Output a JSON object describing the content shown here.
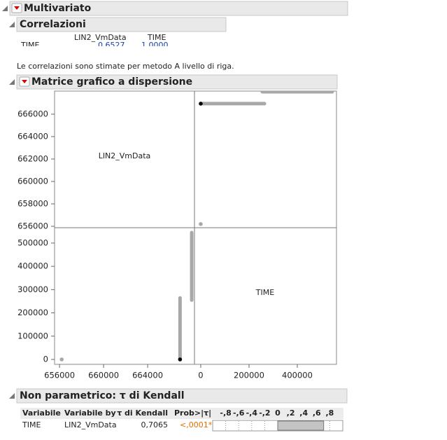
{
  "header": {
    "title": "Multivariato"
  },
  "correlations": {
    "title": "Correlazioni",
    "columns": [
      "LIN2_VmData",
      "TIME"
    ],
    "rows": [
      {
        "label": "TIME",
        "values": [
          "0,6527",
          "1,0000"
        ]
      }
    ],
    "note": "Le correlazioni sono stimate per metodo A livello di riga."
  },
  "scatter_matrix": {
    "title": "Matrice grafico a dispersione",
    "variables": [
      {
        "name": "LIN2_VmData",
        "xlim": [
          655550,
          668250
        ],
        "xticks": [
          656000,
          660000,
          664000
        ],
        "ylim": [
          655875,
          668060
        ],
        "yticks": [
          656000,
          658000,
          660000,
          662000,
          664000,
          666000
        ]
      },
      {
        "name": "TIME",
        "xlim": [
          -26000,
          562300
        ],
        "xticks": [
          0,
          200000,
          400000
        ],
        "ylim": [
          -21100,
          566000
        ],
        "yticks": [
          0,
          100000,
          200000,
          300000,
          400000,
          500000
        ]
      }
    ],
    "bands": [
      {
        "lin2": 666940,
        "time": [
          0,
          264000
        ],
        "color": "#a8a8a8"
      },
      {
        "lin2": 668000,
        "time": [
          255000,
          545000
        ],
        "color": "#a8a8a8"
      }
    ],
    "points": [
      {
        "lin2": 656200,
        "time": 0,
        "color": "#a8a8a8"
      },
      {
        "lin2": 666940,
        "time": 0,
        "color": "#000000"
      }
    ]
  },
  "kendall": {
    "title": "Non parametrico: τ di Kendall",
    "columns": [
      "Variabile",
      "Variabile by",
      "τ di Kendall",
      "Prob>|τ|"
    ],
    "scale": {
      "lim": [
        -1,
        1
      ],
      "ticks": [
        {
          "value": -0.8,
          "label": "-,8"
        },
        {
          "value": -0.6,
          "label": "-,6"
        },
        {
          "value": -0.4,
          "label": "-,4"
        },
        {
          "value": -0.2,
          "label": "-,2"
        },
        0,
        {
          "value": 0.2,
          "label": ",2"
        },
        {
          "value": 0.4,
          "label": ",4"
        },
        {
          "value": 0.6,
          "label": ",6"
        },
        {
          "value": 0.8,
          "label": ",8"
        }
      ]
    },
    "rows": [
      {
        "variable": "TIME",
        "by": "LIN2_VmData",
        "tau": {
          "value": 0.7065,
          "label": "0,7065"
        },
        "prob": "<,0001*"
      }
    ]
  }
}
